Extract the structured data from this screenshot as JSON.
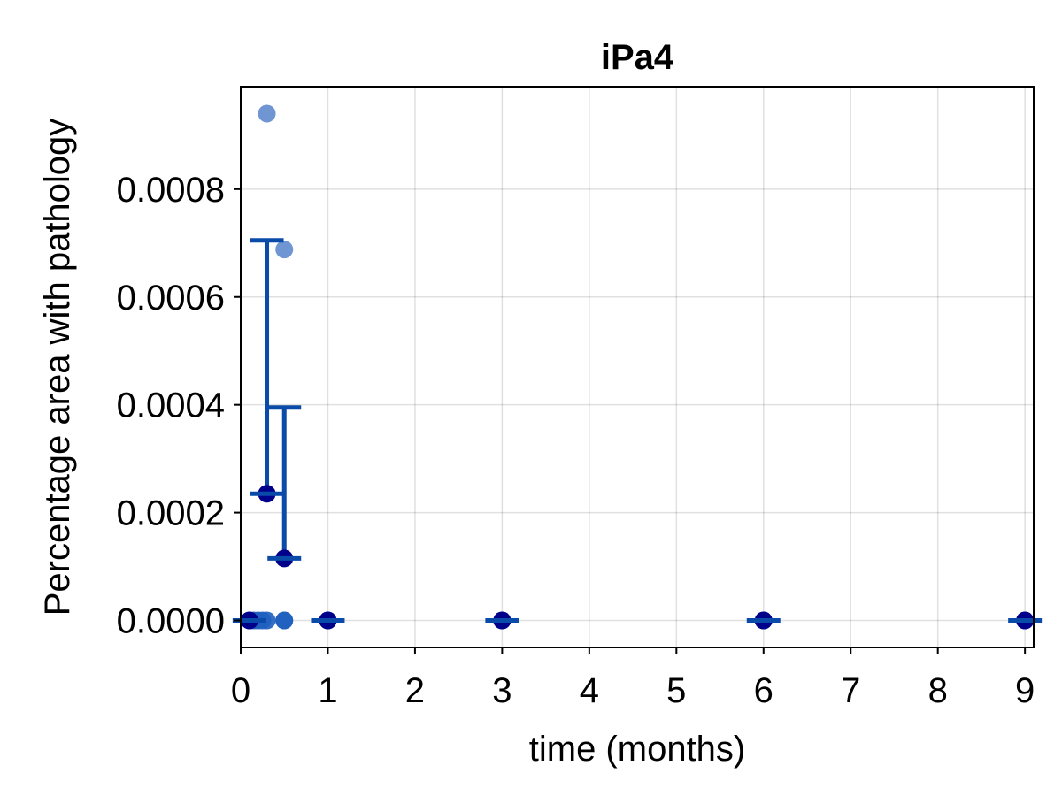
{
  "chart_data": {
    "type": "scatter",
    "title": "iPa4",
    "xlabel": "time (months)",
    "ylabel": "Percentage area with pathology",
    "xlim": [
      0,
      9.1
    ],
    "ylim": [
      -5e-05,
      0.00099
    ],
    "xticks": [
      0,
      1,
      2,
      3,
      4,
      5,
      6,
      7,
      8,
      9
    ],
    "xtick_labels": [
      "0",
      "1",
      "2",
      "3",
      "4",
      "5",
      "6",
      "7",
      "8",
      "9"
    ],
    "yticks": [
      0,
      0.0002,
      0.0004,
      0.0006,
      0.0008
    ],
    "ytick_labels": [
      "0.0000",
      "0.0002",
      "0.0004",
      "0.0006",
      "0.0008"
    ],
    "grid": true,
    "colors": {
      "individual_points": "#1f5fbf",
      "outlier_points": "#6f96d2",
      "mean_points": "#00008b",
      "error_bars": "#0a4aa8"
    },
    "individual_points": [
      {
        "x": 0.1,
        "y": 0
      },
      {
        "x": 0.15,
        "y": 0
      },
      {
        "x": 0.2,
        "y": 0
      },
      {
        "x": 0.25,
        "y": 0
      },
      {
        "x": 0.3,
        "y": 0
      },
      {
        "x": 0.3,
        "y": 0.00094
      },
      {
        "x": 0.5,
        "y": 0
      },
      {
        "x": 0.5,
        "y": 0
      },
      {
        "x": 0.5,
        "y": 0.000688
      },
      {
        "x": 1,
        "y": 0
      },
      {
        "x": 1,
        "y": 0
      },
      {
        "x": 3,
        "y": 0
      },
      {
        "x": 3,
        "y": 0
      },
      {
        "x": 6,
        "y": 0
      },
      {
        "x": 6,
        "y": 0
      },
      {
        "x": 9,
        "y": 0
      },
      {
        "x": 9,
        "y": 0
      }
    ],
    "means": [
      {
        "x": 0.1,
        "y": 0
      },
      {
        "x": 0.3,
        "y": 0.000235,
        "err_upper": 0.000705
      },
      {
        "x": 0.5,
        "y": 0.000115,
        "err_upper": 0.000395
      },
      {
        "x": 1,
        "y": 0
      },
      {
        "x": 3,
        "y": 0
      },
      {
        "x": 6,
        "y": 0
      },
      {
        "x": 9,
        "y": 0
      }
    ]
  }
}
